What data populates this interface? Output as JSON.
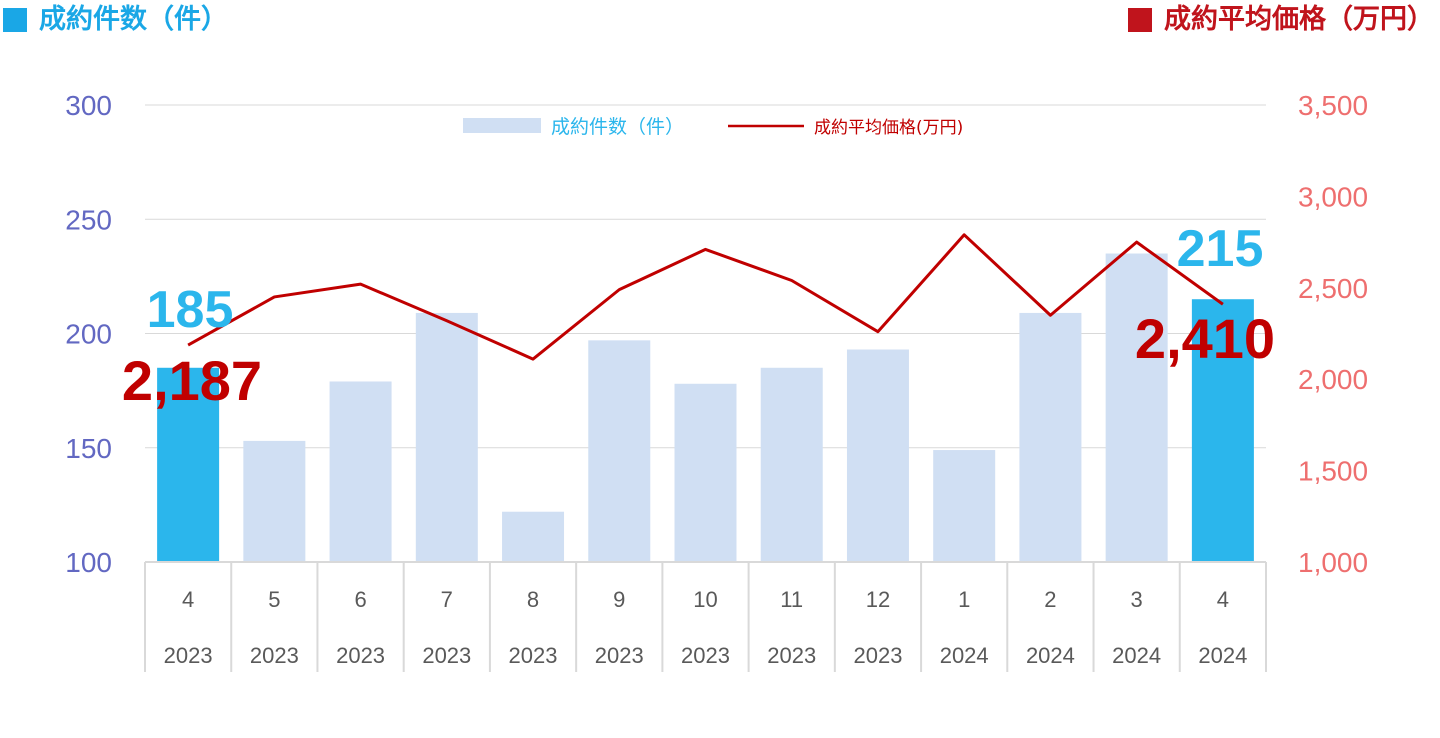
{
  "headers": {
    "left": {
      "text": "成約件数（件）",
      "color": "#1aa7e6"
    },
    "right": {
      "text": "成約平均価格（万円）",
      "color": "#c0141c"
    }
  },
  "colors": {
    "bar": "#d0dff3",
    "bar_highlight": "#2bb6ec",
    "line": "#c00000",
    "left_axis": "#6268c2",
    "right_axis": "#ee6f6f",
    "grid": "#d9d9d9",
    "category_text": "#595959",
    "label_count": "#2bb6ec",
    "label_price": "#c00000"
  },
  "chart_data": {
    "type": "bar",
    "categories": [
      {
        "month": "4",
        "year": "2023"
      },
      {
        "month": "5",
        "year": "2023"
      },
      {
        "month": "6",
        "year": "2023"
      },
      {
        "month": "7",
        "year": "2023"
      },
      {
        "month": "8",
        "year": "2023"
      },
      {
        "month": "9",
        "year": "2023"
      },
      {
        "month": "10",
        "year": "2023"
      },
      {
        "month": "11",
        "year": "2023"
      },
      {
        "month": "12",
        "year": "2023"
      },
      {
        "month": "1",
        "year": "2024"
      },
      {
        "month": "2",
        "year": "2024"
      },
      {
        "month": "3",
        "year": "2024"
      },
      {
        "month": "4",
        "year": "2024"
      }
    ],
    "series": [
      {
        "name": "成約件数（件）",
        "type": "bar",
        "axis": "left",
        "values": [
          185,
          153,
          179,
          209,
          122,
          197,
          178,
          185,
          193,
          149,
          209,
          235,
          215
        ],
        "highlight": [
          0,
          12
        ]
      },
      {
        "name": "成約平均価格(万円)",
        "type": "line",
        "axis": "right",
        "values": [
          2187,
          2450,
          2520,
          2320,
          2110,
          2490,
          2710,
          2540,
          2260,
          2790,
          2350,
          2750,
          2410
        ]
      }
    ],
    "left_axis": {
      "min": 100,
      "max": 300,
      "ticks": [
        "100",
        "150",
        "200",
        "250",
        "300"
      ]
    },
    "right_axis": {
      "min": 1000,
      "max": 3500,
      "ticks": [
        "1,000",
        "1,500",
        "2,000",
        "2,500",
        "3,000",
        "3,500"
      ]
    },
    "data_labels": [
      {
        "series": 0,
        "index": 0,
        "text": "185"
      },
      {
        "series": 0,
        "index": 12,
        "text": "215"
      },
      {
        "series": 1,
        "index": 0,
        "text": "2,187"
      },
      {
        "series": 1,
        "index": 12,
        "text": "2,410"
      }
    ],
    "legend": {
      "position": "top-center",
      "items": [
        "成約件数（件）",
        "成約平均価格(万円)"
      ]
    },
    "grid": true
  }
}
